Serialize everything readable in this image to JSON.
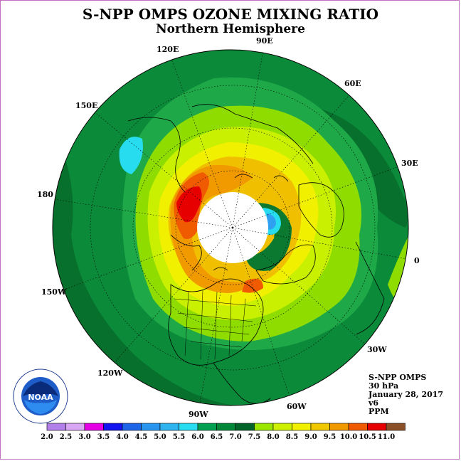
{
  "title": "S-NPP OMPS OZONE MIXING RATIO",
  "subtitle": "Northern Hemisphere",
  "longitude_labels": [
    "90E",
    "60E",
    "30E",
    "0",
    "30W",
    "60W",
    "90W",
    "120W",
    "150W",
    "180",
    "150E",
    "120E"
  ],
  "info": {
    "instrument": "S-NPP OMPS",
    "pressure": "30 hPa",
    "date": "January 28, 2017",
    "version": "v6",
    "units": "PPM"
  },
  "logo": {
    "text": "NOAA",
    "ring_text": "NATIONAL OCEANIC AND ATMOSPHERIC ADMINISTRATION",
    "ring_text_bottom": "U.S. DEPARTMENT OF COMMERCE"
  },
  "colorbar": {
    "labels": [
      "2.0",
      "2.5",
      "3.0",
      "3.5",
      "4.0",
      "4.5",
      "5.0",
      "5.5",
      "6.0",
      "6.5",
      "7.0",
      "7.5",
      "8.0",
      "8.5",
      "9.0",
      "9.5",
      "10.0",
      "10.5",
      "11.0"
    ],
    "colors": [
      "#b27fe8",
      "#d8a6f2",
      "#e600e6",
      "#1414f0",
      "#1e64e6",
      "#2896f0",
      "#30b4f0",
      "#28dcf0",
      "#00a050",
      "#008838",
      "#006428",
      "#9ae600",
      "#ccf000",
      "#f0f000",
      "#f0c800",
      "#f09a00",
      "#f05a00",
      "#e60000",
      "#8c5028"
    ]
  }
}
